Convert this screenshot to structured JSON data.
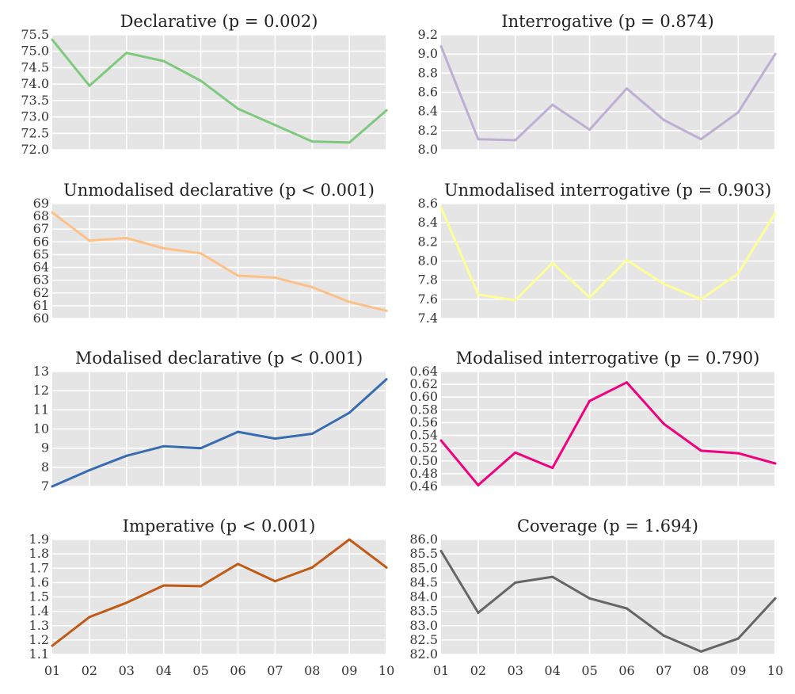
{
  "chart_data": [
    {
      "type": "line",
      "title": "Declarative (p = 0.002)",
      "x": [
        "01",
        "02",
        "03",
        "04",
        "05",
        "06",
        "07",
        "08",
        "09",
        "10"
      ],
      "y": [
        75.35,
        73.95,
        74.95,
        74.7,
        74.1,
        73.25,
        72.75,
        72.25,
        72.22,
        73.2
      ],
      "ylim": [
        72.0,
        75.5
      ],
      "yticks": [
        "72.0",
        "72.5",
        "73.0",
        "73.5",
        "74.0",
        "74.5",
        "75.0",
        "75.5"
      ],
      "color": "#7fc97f",
      "grid": true
    },
    {
      "type": "line",
      "title": "Interrogative (p = 0.874)",
      "x": [
        "01",
        "02",
        "03",
        "04",
        "05",
        "06",
        "07",
        "08",
        "09",
        "10"
      ],
      "y": [
        9.08,
        8.11,
        8.1,
        8.47,
        8.21,
        8.64,
        8.31,
        8.11,
        8.39,
        9.0
      ],
      "ylim": [
        8.0,
        9.2
      ],
      "yticks": [
        "8.0",
        "8.2",
        "8.4",
        "8.6",
        "8.8",
        "9.0",
        "9.2"
      ],
      "color": "#beaed4",
      "grid": true
    },
    {
      "type": "line",
      "title": "Unmodalised declarative (p < 0.001)",
      "x": [
        "01",
        "02",
        "03",
        "04",
        "05",
        "06",
        "07",
        "08",
        "09",
        "10"
      ],
      "y": [
        68.3,
        66.1,
        66.3,
        65.5,
        65.1,
        63.35,
        63.2,
        62.45,
        61.3,
        60.6
      ],
      "ylim": [
        60,
        69
      ],
      "yticks": [
        "60",
        "61",
        "62",
        "63",
        "64",
        "65",
        "66",
        "67",
        "68",
        "69"
      ],
      "color": "#fdc086",
      "grid": true
    },
    {
      "type": "line",
      "title": "Unmodalised interrogative (p = 0.903)",
      "x": [
        "01",
        "02",
        "03",
        "04",
        "05",
        "06",
        "07",
        "08",
        "09",
        "10"
      ],
      "y": [
        8.56,
        7.65,
        7.59,
        7.98,
        7.62,
        8.01,
        7.76,
        7.6,
        7.87,
        8.5
      ],
      "ylim": [
        7.4,
        8.6
      ],
      "yticks": [
        "7.4",
        "7.6",
        "7.8",
        "8.0",
        "8.2",
        "8.4",
        "8.6"
      ],
      "color": "#ffff99",
      "grid": true
    },
    {
      "type": "line",
      "title": "Modalised declarative (p < 0.001)",
      "x": [
        "01",
        "02",
        "03",
        "04",
        "05",
        "06",
        "07",
        "08",
        "09",
        "10"
      ],
      "y": [
        7.0,
        7.85,
        8.6,
        9.1,
        9.0,
        9.85,
        9.5,
        9.75,
        10.85,
        12.6
      ],
      "ylim": [
        7,
        13
      ],
      "yticks": [
        "7",
        "8",
        "9",
        "10",
        "11",
        "12",
        "13"
      ],
      "color": "#386cb0",
      "grid": true
    },
    {
      "type": "line",
      "title": "Modalised interrogative (p = 0.790)",
      "x": [
        "01",
        "02",
        "03",
        "04",
        "05",
        "06",
        "07",
        "08",
        "09",
        "10"
      ],
      "y": [
        0.532,
        0.462,
        0.513,
        0.489,
        0.594,
        0.623,
        0.558,
        0.516,
        0.512,
        0.496
      ],
      "ylim": [
        0.46,
        0.64
      ],
      "yticks": [
        "0.46",
        "0.48",
        "0.50",
        "0.52",
        "0.54",
        "0.56",
        "0.58",
        "0.60",
        "0.62",
        "0.64"
      ],
      "color": "#f0027f",
      "grid": true
    },
    {
      "type": "line",
      "title": "Imperative (p < 0.001)",
      "x": [
        "01",
        "02",
        "03",
        "04",
        "05",
        "06",
        "07",
        "08",
        "09",
        "10"
      ],
      "y": [
        1.16,
        1.36,
        1.46,
        1.58,
        1.575,
        1.73,
        1.61,
        1.705,
        1.9,
        1.705
      ],
      "ylim": [
        1.1,
        1.9
      ],
      "yticks": [
        "1.1",
        "1.2",
        "1.3",
        "1.4",
        "1.5",
        "1.6",
        "1.7",
        "1.8",
        "1.9"
      ],
      "xticks": [
        "01",
        "02",
        "03",
        "04",
        "05",
        "06",
        "07",
        "08",
        "09",
        "10"
      ],
      "color": "#bf5b17",
      "grid": true
    },
    {
      "type": "line",
      "title": "Coverage (p = 1.694)",
      "x": [
        "01",
        "02",
        "03",
        "04",
        "05",
        "06",
        "07",
        "08",
        "09",
        "10"
      ],
      "y": [
        85.6,
        83.45,
        84.5,
        84.7,
        83.95,
        83.6,
        82.65,
        82.1,
        82.55,
        83.95
      ],
      "ylim": [
        82.0,
        86.0
      ],
      "yticks": [
        "82.0",
        "82.5",
        "83.0",
        "83.5",
        "84.0",
        "84.5",
        "85.0",
        "85.5",
        "86.0"
      ],
      "xticks": [
        "01",
        "02",
        "03",
        "04",
        "05",
        "06",
        "07",
        "08",
        "09",
        "10"
      ],
      "color": "#666666",
      "grid": true
    }
  ]
}
